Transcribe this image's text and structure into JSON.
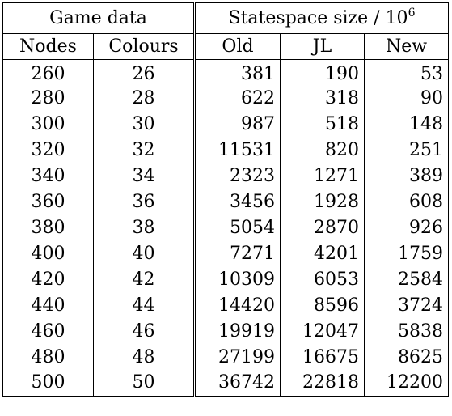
{
  "table": {
    "group_headers": {
      "game_data": "Game data",
      "statespace": "Statespace size / 10",
      "statespace_exp": "6"
    },
    "columns": [
      "Nodes",
      "Colours",
      "Old",
      "JL",
      "New"
    ],
    "rows": [
      [
        "260",
        "26",
        "381",
        "190",
        "53"
      ],
      [
        "280",
        "28",
        "622",
        "318",
        "90"
      ],
      [
        "300",
        "30",
        "987",
        "518",
        "148"
      ],
      [
        "320",
        "32",
        "11531",
        "820",
        "251"
      ],
      [
        "340",
        "34",
        "2323",
        "1271",
        "389"
      ],
      [
        "360",
        "36",
        "3456",
        "1928",
        "608"
      ],
      [
        "380",
        "38",
        "5054",
        "2870",
        "926"
      ],
      [
        "400",
        "40",
        "7271",
        "4201",
        "1759"
      ],
      [
        "420",
        "42",
        "10309",
        "6053",
        "2584"
      ],
      [
        "440",
        "44",
        "14420",
        "8596",
        "3724"
      ],
      [
        "460",
        "46",
        "19919",
        "12047",
        "5838"
      ],
      [
        "480",
        "48",
        "27199",
        "16675",
        "8625"
      ],
      [
        "500",
        "50",
        "36742",
        "22818",
        "12200"
      ]
    ]
  }
}
